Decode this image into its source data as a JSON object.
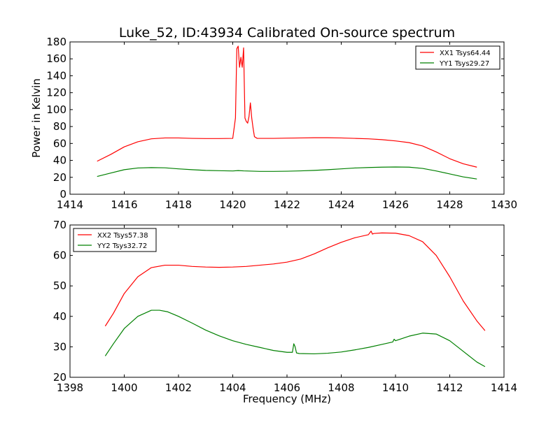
{
  "figure": {
    "title": "Luke_52, ID:43934 Calibrated On-source spectrum"
  },
  "colors": {
    "series_1": "#ff0000",
    "series_2": "#008000",
    "axes": "#000000",
    "background": "#ffffff"
  },
  "chart_data": [
    {
      "type": "line",
      "title": "Luke_52, ID:43934 Calibrated On-source spectrum",
      "xlabel": "",
      "ylabel": "Power in Kelvin",
      "xlim": [
        1414,
        1430
      ],
      "ylim": [
        0,
        180
      ],
      "xticks": [
        1414,
        1416,
        1418,
        1420,
        1422,
        1424,
        1426,
        1428,
        1430
      ],
      "yticks": [
        0,
        20,
        40,
        60,
        80,
        100,
        120,
        140,
        160,
        180
      ],
      "grid": false,
      "legend_position": "upper right",
      "series": [
        {
          "name": "XX1 Tsys64.44",
          "color": "#ff0000",
          "x": [
            1415.0,
            1415.5,
            1416.0,
            1416.5,
            1417.0,
            1417.5,
            1418.0,
            1418.5,
            1419.0,
            1419.5,
            1420.0,
            1420.1,
            1420.15,
            1420.2,
            1420.25,
            1420.3,
            1420.35,
            1420.4,
            1420.45,
            1420.5,
            1420.55,
            1420.6,
            1420.65,
            1420.7,
            1420.75,
            1420.8,
            1420.9,
            1421.0,
            1421.5,
            1422.0,
            1422.5,
            1423.0,
            1423.5,
            1424.0,
            1424.5,
            1425.0,
            1425.5,
            1426.0,
            1426.5,
            1427.0,
            1427.5,
            1428.0,
            1428.5,
            1429.0
          ],
          "y": [
            39,
            47,
            56,
            62,
            65.5,
            66.5,
            66.5,
            66,
            65.8,
            65.8,
            66,
            90,
            172,
            175,
            150,
            162,
            150,
            173,
            90,
            86,
            84,
            92,
            108,
            90,
            78,
            68,
            66,
            66,
            66,
            66.3,
            66.5,
            66.8,
            66.8,
            66.5,
            66,
            65.5,
            64.5,
            63,
            61,
            57,
            50,
            42,
            36,
            32
          ]
        },
        {
          "name": "YY1 Tsys29.27",
          "color": "#008000",
          "x": [
            1415.0,
            1415.5,
            1416.0,
            1416.5,
            1417.0,
            1417.5,
            1418.0,
            1418.5,
            1419.0,
            1419.5,
            1420.0,
            1420.2,
            1420.4,
            1421.0,
            1421.5,
            1422.0,
            1422.5,
            1423.0,
            1423.5,
            1424.0,
            1424.5,
            1425.0,
            1425.5,
            1426.0,
            1426.5,
            1427.0,
            1427.5,
            1428.0,
            1428.5,
            1429.0
          ],
          "y": [
            21,
            25,
            29,
            31,
            31.5,
            31.2,
            30,
            29,
            28.2,
            27.8,
            27.5,
            28,
            27.6,
            27,
            27,
            27.2,
            27.6,
            28.2,
            29,
            30,
            31,
            31.6,
            32,
            32.2,
            32,
            30.5,
            27.5,
            24,
            20.5,
            18
          ]
        }
      ]
    },
    {
      "type": "line",
      "title": "",
      "xlabel": "Frequency (MHz)",
      "ylabel": "",
      "xlim": [
        1398,
        1414
      ],
      "ylim": [
        20,
        70
      ],
      "xticks": [
        1398,
        1400,
        1402,
        1404,
        1406,
        1408,
        1410,
        1412,
        1414
      ],
      "yticks": [
        20,
        30,
        40,
        50,
        60,
        70
      ],
      "grid": false,
      "legend_position": "upper left",
      "series": [
        {
          "name": "XX2 Tsys57.38",
          "color": "#ff0000",
          "x": [
            1399.3,
            1399.6,
            1400.0,
            1400.5,
            1401.0,
            1401.5,
            1402.0,
            1402.5,
            1403.0,
            1403.5,
            1404.0,
            1404.5,
            1405.0,
            1405.5,
            1406.0,
            1406.5,
            1407.0,
            1407.5,
            1408.0,
            1408.5,
            1409.0,
            1409.1,
            1409.15,
            1409.2,
            1409.5,
            1410.0,
            1410.5,
            1411.0,
            1411.5,
            1412.0,
            1412.5,
            1413.0,
            1413.3
          ],
          "y": [
            36.8,
            41,
            47.5,
            53,
            56,
            56.8,
            56.8,
            56.4,
            56.2,
            56.1,
            56.2,
            56.4,
            56.8,
            57.2,
            57.8,
            58.8,
            60.5,
            62.5,
            64.3,
            65.8,
            66.8,
            68,
            67,
            67.2,
            67.4,
            67.3,
            66.5,
            64.5,
            60,
            53,
            45,
            38.5,
            35.3
          ]
        },
        {
          "name": "YY2 Tsys32.72",
          "color": "#008000",
          "x": [
            1399.3,
            1399.6,
            1400.0,
            1400.5,
            1401.0,
            1401.3,
            1401.6,
            1402.0,
            1402.5,
            1403.0,
            1403.5,
            1404.0,
            1404.5,
            1405.0,
            1405.5,
            1406.0,
            1406.2,
            1406.25,
            1406.3,
            1406.35,
            1406.45,
            1407.0,
            1407.5,
            1408.0,
            1408.5,
            1409.0,
            1409.5,
            1409.9,
            1409.95,
            1410.0,
            1410.5,
            1411.0,
            1411.5,
            1412.0,
            1412.5,
            1413.0,
            1413.3
          ],
          "y": [
            27,
            31,
            36,
            40,
            42,
            42,
            41.5,
            40,
            37.8,
            35.5,
            33.6,
            32,
            30.8,
            29.8,
            28.8,
            28.2,
            28.2,
            31,
            30,
            28,
            27.8,
            27.7,
            27.9,
            28.3,
            29,
            29.8,
            30.8,
            31.6,
            32.5,
            32,
            33.5,
            34.5,
            34.2,
            32,
            28.5,
            25,
            23.5
          ]
        }
      ]
    }
  ]
}
